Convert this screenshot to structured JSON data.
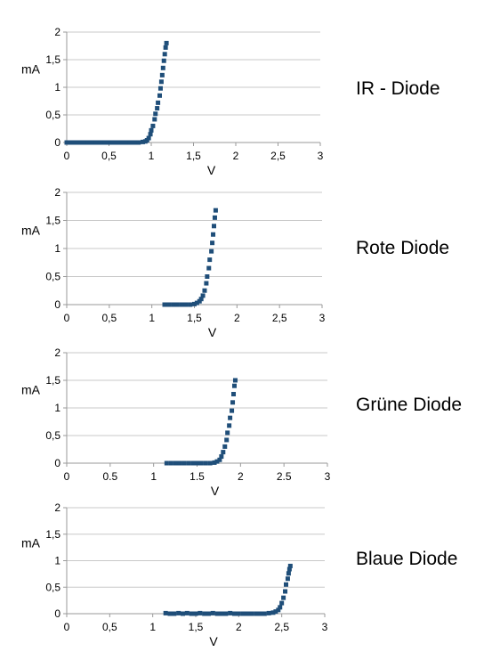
{
  "chart_data": [
    {
      "type": "scatter",
      "title": "IR - Diode",
      "xlabel": "V",
      "ylabel": "mA",
      "xlim": [
        0,
        3
      ],
      "ylim": [
        0,
        2
      ],
      "xticks": [
        "0",
        "0,5",
        "1",
        "1,5",
        "2",
        "2,5",
        "3"
      ],
      "yticks": [
        "0",
        "0,5",
        "1",
        "1,5",
        "2"
      ],
      "grid": "horizontal",
      "marker_color": "#1f4e79",
      "series": [
        {
          "x": [
            0.0,
            0.05,
            0.1,
            0.15,
            0.2,
            0.25,
            0.3,
            0.35,
            0.4,
            0.45,
            0.5,
            0.55,
            0.6,
            0.65,
            0.7,
            0.75,
            0.8,
            0.85,
            0.9,
            0.93,
            0.95,
            0.97,
            0.99,
            1.0,
            1.02,
            1.04,
            1.05,
            1.07,
            1.08,
            1.1,
            1.11,
            1.12,
            1.13,
            1.14,
            1.15,
            1.16,
            1.17,
            1.18
          ],
          "y": [
            0,
            0,
            0,
            0,
            0,
            0,
            0,
            0,
            0,
            0,
            0,
            0,
            0,
            0,
            0,
            0,
            0,
            0,
            0.01,
            0.02,
            0.04,
            0.08,
            0.15,
            0.22,
            0.3,
            0.42,
            0.52,
            0.62,
            0.72,
            0.85,
            0.98,
            1.1,
            1.22,
            1.35,
            1.48,
            1.6,
            1.72,
            1.8
          ]
        }
      ]
    },
    {
      "type": "scatter",
      "title": "Rote Diode",
      "xlabel": "V",
      "ylabel": "mA",
      "xlim": [
        0,
        3
      ],
      "ylim": [
        0,
        2
      ],
      "xticks": [
        "0",
        "0,5",
        "1",
        "1,5",
        "2",
        "2,5",
        "3"
      ],
      "yticks": [
        "0",
        "0,5",
        "1",
        "1,5",
        "2"
      ],
      "grid": "horizontal",
      "marker_color": "#1f4e79",
      "series": [
        {
          "x": [
            1.15,
            1.2,
            1.25,
            1.3,
            1.35,
            1.4,
            1.45,
            1.5,
            1.53,
            1.56,
            1.58,
            1.6,
            1.62,
            1.64,
            1.65,
            1.67,
            1.68,
            1.7,
            1.71,
            1.72,
            1.73,
            1.74,
            1.75
          ],
          "y": [
            0,
            0,
            0,
            0,
            0,
            0,
            0,
            0.01,
            0.03,
            0.06,
            0.1,
            0.16,
            0.25,
            0.38,
            0.5,
            0.65,
            0.8,
            0.95,
            1.1,
            1.25,
            1.4,
            1.55,
            1.68
          ]
        }
      ]
    },
    {
      "type": "scatter",
      "title": "Grüne Diode",
      "xlabel": "V",
      "ylabel": "mA",
      "xlim": [
        0,
        3
      ],
      "ylim": [
        0,
        2
      ],
      "xticks": [
        "0",
        "0.5",
        "1",
        "1.5",
        "2",
        "2.5",
        "3"
      ],
      "yticks": [
        "0",
        "0,5",
        "1",
        "1,5",
        "2"
      ],
      "grid": "horizontal",
      "marker_color": "#1f4e79",
      "series": [
        {
          "x": [
            1.15,
            1.2,
            1.25,
            1.3,
            1.35,
            1.4,
            1.45,
            1.5,
            1.55,
            1.6,
            1.65,
            1.7,
            1.73,
            1.76,
            1.78,
            1.8,
            1.82,
            1.84,
            1.85,
            1.87,
            1.88,
            1.9,
            1.91,
            1.92,
            1.93,
            1.94
          ],
          "y": [
            0,
            0,
            0,
            0,
            0,
            0,
            0,
            0,
            0,
            0,
            0,
            0.01,
            0.03,
            0.06,
            0.12,
            0.2,
            0.3,
            0.42,
            0.55,
            0.68,
            0.82,
            0.95,
            1.1,
            1.25,
            1.4,
            1.5
          ]
        }
      ]
    },
    {
      "type": "scatter",
      "title": "Blaue Diode",
      "xlabel": "V",
      "ylabel": "mA",
      "xlim": [
        0,
        3
      ],
      "ylim": [
        0,
        2
      ],
      "xticks": [
        "0",
        "0,5",
        "1",
        "1,5",
        "2",
        "2,5",
        "3"
      ],
      "yticks": [
        "0",
        "0,5",
        "1",
        "1,5",
        "2"
      ],
      "grid": "horizontal",
      "marker_color": "#1f4e79",
      "series": [
        {
          "x": [
            1.15,
            1.2,
            1.25,
            1.3,
            1.35,
            1.4,
            1.45,
            1.5,
            1.55,
            1.6,
            1.65,
            1.7,
            1.75,
            1.8,
            1.85,
            1.9,
            1.95,
            2.0,
            2.05,
            2.1,
            2.15,
            2.2,
            2.25,
            2.3,
            2.35,
            2.4,
            2.43,
            2.46,
            2.48,
            2.5,
            2.52,
            2.54,
            2.55,
            2.57,
            2.58,
            2.59,
            2.6
          ],
          "y": [
            0.01,
            0,
            0,
            0.01,
            0,
            0.01,
            0,
            0,
            0.01,
            0,
            0,
            0.01,
            0,
            0,
            0,
            0.01,
            0,
            0,
            0,
            0,
            0,
            0,
            0,
            0,
            0.01,
            0.02,
            0.04,
            0.07,
            0.12,
            0.2,
            0.3,
            0.42,
            0.55,
            0.66,
            0.76,
            0.84,
            0.9
          ]
        }
      ]
    }
  ]
}
